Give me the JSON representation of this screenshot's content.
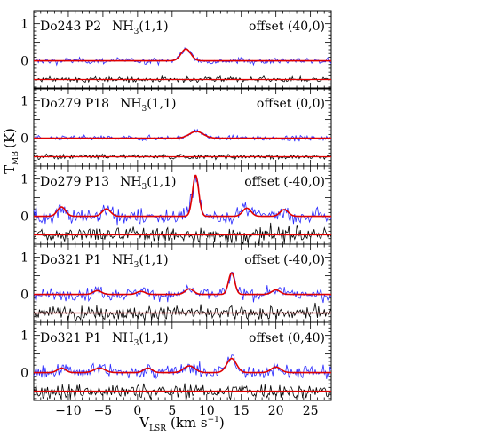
{
  "chart_data": [
    {
      "type": "line",
      "source": "Do243 P2",
      "line": "NH",
      "line_sub": "3",
      "line_trans": "(1,1)",
      "offset": "offset (40,0)",
      "peaks": [
        {
          "v": 7.0,
          "amp": 0.32,
          "w": 0.7
        }
      ],
      "noise": 0.06,
      "residual_noise": 0.05
    },
    {
      "type": "line",
      "source": "Do279 P18",
      "line": "NH",
      "line_sub": "3",
      "line_trans": "(1,1)",
      "offset": "offset (0,0)",
      "peaks": [
        {
          "v": 8.5,
          "amp": 0.18,
          "w": 1.0
        }
      ],
      "noise": 0.05,
      "residual_noise": 0.05
    },
    {
      "type": "line",
      "source": "Do279 P13",
      "line": "NH",
      "line_sub": "3",
      "line_trans": "(1,1)",
      "offset": "offset (-40,0)",
      "peaks": [
        {
          "v": -11.0,
          "amp": 0.25,
          "w": 0.6
        },
        {
          "v": -4.5,
          "amp": 0.2,
          "w": 0.6
        },
        {
          "v": 8.4,
          "amp": 1.1,
          "w": 0.45
        },
        {
          "v": 15.8,
          "amp": 0.22,
          "w": 0.6
        },
        {
          "v": 21.2,
          "amp": 0.18,
          "w": 0.6
        }
      ],
      "noise": 0.17,
      "residual_noise": 0.16
    },
    {
      "type": "line",
      "source": "Do321 P1",
      "line": "NH",
      "line_sub": "3",
      "line_trans": "(1,1)",
      "offset": "offset (-40,0)",
      "peaks": [
        {
          "v": -5.8,
          "amp": 0.1,
          "w": 0.6
        },
        {
          "v": 0.5,
          "amp": 0.08,
          "w": 0.6
        },
        {
          "v": 7.5,
          "amp": 0.15,
          "w": 0.6
        },
        {
          "v": 13.6,
          "amp": 0.58,
          "w": 0.45
        },
        {
          "v": 20.0,
          "amp": 0.12,
          "w": 0.6
        }
      ],
      "noise": 0.12,
      "residual_noise": 0.14
    },
    {
      "type": "line",
      "source": "Do321 P1",
      "line": "NH",
      "line_sub": "3",
      "line_trans": "(1,1)",
      "offset": "offset (0,40)",
      "peaks": [
        {
          "v": -11.0,
          "amp": 0.12,
          "w": 0.6
        },
        {
          "v": -5.5,
          "amp": 0.12,
          "w": 0.8
        },
        {
          "v": 1.5,
          "amp": 0.12,
          "w": 0.6
        },
        {
          "v": 7.5,
          "amp": 0.18,
          "w": 0.8
        },
        {
          "v": 13.6,
          "amp": 0.38,
          "w": 0.7
        },
        {
          "v": 20.0,
          "amp": 0.15,
          "w": 0.7
        }
      ],
      "noise": 0.14,
      "residual_noise": 0.15
    }
  ],
  "axes": {
    "ylabel": "T",
    "ylabel_sub": "MB",
    "ylabel_unit": "(K)",
    "xlabel": "V",
    "xlabel_sub": "LSR",
    "xlabel_unit": "(km s",
    "xlabel_exp": "−1",
    "xlabel_close": ")",
    "xlim": [
      -15,
      28
    ],
    "xticks": [
      -10,
      -5,
      0,
      5,
      10,
      15,
      20,
      25
    ],
    "ytick_labels": [
      "1",
      "0"
    ],
    "ytick_values": [
      1,
      0
    ],
    "ylim": [
      -0.75,
      1.35
    ],
    "residual_offset": -0.5
  },
  "colors": {
    "observed": "#2a2aff",
    "fit": "#e00000",
    "residual": "#000000",
    "frame": "#000000"
  }
}
